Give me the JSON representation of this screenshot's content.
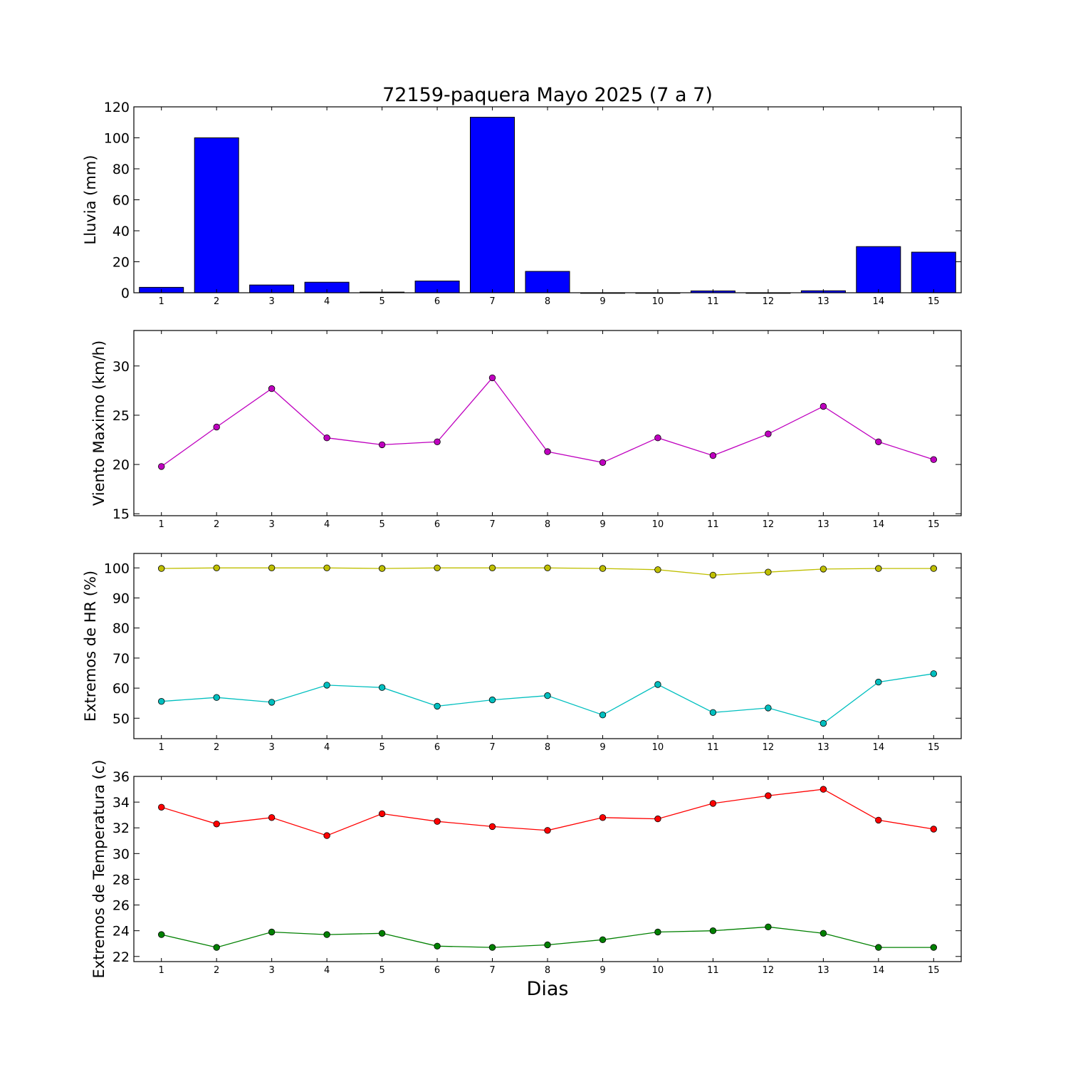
{
  "chart_data": [
    {
      "type": "bar",
      "title": "72159-paquera Mayo 2025  (7 a 7)",
      "xlabel": "",
      "ylabel": "Lluvia (mm)",
      "categories": [
        "1",
        "2",
        "3",
        "4",
        "5",
        "6",
        "7",
        "8",
        "9",
        "10",
        "11",
        "12",
        "13",
        "14",
        "15"
      ],
      "values": [
        3.5,
        100.0,
        5.0,
        6.8,
        0.4,
        7.6,
        113.3,
        13.8,
        0.0,
        0.0,
        1.2,
        0.0,
        1.3,
        29.8,
        26.2
      ],
      "ylim": [
        0,
        120
      ],
      "yticks": [
        "0",
        "20",
        "40",
        "60",
        "80",
        "100",
        "120"
      ],
      "color": "#0000ff",
      "grid": false
    },
    {
      "type": "line",
      "ylabel": "Viento Maximo (km/h)",
      "x": [
        1,
        2,
        3,
        4,
        5,
        6,
        7,
        8,
        9,
        10,
        11,
        12,
        13,
        14,
        15
      ],
      "series": [
        {
          "values": [
            19.8,
            23.8,
            27.7,
            22.7,
            22.0,
            22.3,
            28.8,
            21.3,
            20.2,
            22.7,
            20.9,
            23.1,
            25.9,
            22.3,
            20.5
          ],
          "color": "#bf00bf"
        }
      ],
      "ylim": [
        14.8,
        33.6
      ],
      "yticks": [
        "15",
        "20",
        "25",
        "30"
      ],
      "grid": false
    },
    {
      "type": "line",
      "ylabel": "Extremos de HR (%)",
      "x": [
        1,
        2,
        3,
        4,
        5,
        6,
        7,
        8,
        9,
        10,
        11,
        12,
        13,
        14,
        15
      ],
      "series": [
        {
          "values": [
            99.8,
            100.0,
            100.0,
            100.0,
            99.8,
            100.0,
            100.0,
            100.0,
            99.8,
            99.4,
            97.6,
            98.6,
            99.6,
            99.8,
            99.8
          ],
          "color": "#bfbf00"
        },
        {
          "values": [
            55.6,
            56.9,
            55.3,
            61.0,
            60.2,
            54.0,
            56.1,
            57.5,
            51.1,
            61.2,
            51.9,
            53.4,
            48.3,
            62.0,
            64.8
          ],
          "color": "#00bfbf"
        }
      ],
      "ylim": [
        43.2,
        104.8
      ],
      "yticks": [
        "50",
        "60",
        "70",
        "80",
        "90",
        "100"
      ],
      "grid": false
    },
    {
      "type": "line",
      "ylabel": "Extremos de Temperatura (c)",
      "xlabel": "Dias",
      "x": [
        1,
        2,
        3,
        4,
        5,
        6,
        7,
        8,
        9,
        10,
        11,
        12,
        13,
        14,
        15
      ],
      "series": [
        {
          "values": [
            33.6,
            32.3,
            32.8,
            31.4,
            33.1,
            32.5,
            32.1,
            31.8,
            32.8,
            32.7,
            33.9,
            34.5,
            35.0,
            32.6,
            31.9
          ],
          "color": "#ff0000"
        },
        {
          "values": [
            23.7,
            22.7,
            23.9,
            23.7,
            23.8,
            22.8,
            22.7,
            22.9,
            23.3,
            23.9,
            24.0,
            24.3,
            23.8,
            22.7,
            22.7
          ],
          "color": "#008000"
        }
      ],
      "ylim": [
        21.6,
        36
      ],
      "yticks": [
        "22",
        "24",
        "26",
        "28",
        "30",
        "32",
        "34",
        "36"
      ],
      "grid": false
    }
  ]
}
